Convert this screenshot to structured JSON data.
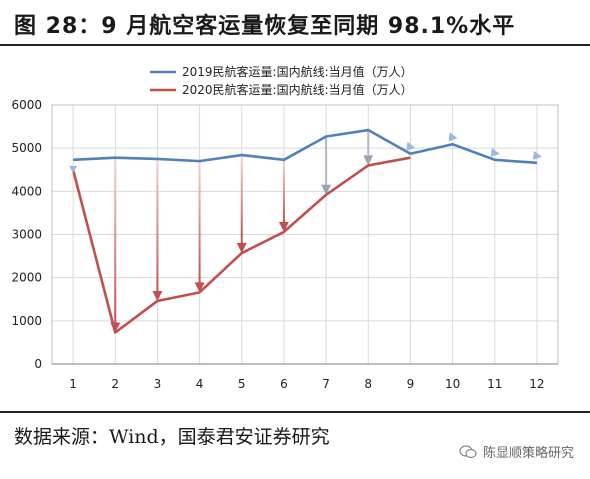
{
  "header": {
    "title": "图 28：9 月航空客运量恢复至同期 98.1%水平"
  },
  "footer": {
    "source": "数据来源：Wind，国泰君安证券研究",
    "watermark": "陈显顺策略研究"
  },
  "colors": {
    "series_2019": "#4f81bd",
    "series_2020": "#c0504d",
    "arrow_fill": "#9db8dc"
  },
  "chart_data": {
    "type": "line",
    "x": [
      1,
      2,
      3,
      4,
      5,
      6,
      7,
      8,
      9,
      10,
      11,
      12
    ],
    "xlim": [
      0.5,
      12.5
    ],
    "ylim": [
      0,
      6000
    ],
    "yticks": [
      0,
      1000,
      2000,
      3000,
      4000,
      5000,
      6000
    ],
    "legend_position": "top",
    "series": [
      {
        "name": "2019民航客运量:国内航线:当月值（万人）",
        "values": [
          4730,
          4780,
          4750,
          4700,
          4840,
          4730,
          5270,
          5420,
          4870,
          5090,
          4730,
          4660
        ]
      },
      {
        "name": "2020民航客运量:国内航线:当月值（万人）",
        "values": [
          4500,
          730,
          1460,
          1660,
          2570,
          3060,
          3920,
          4600,
          4780,
          null,
          null,
          null
        ]
      }
    ]
  }
}
